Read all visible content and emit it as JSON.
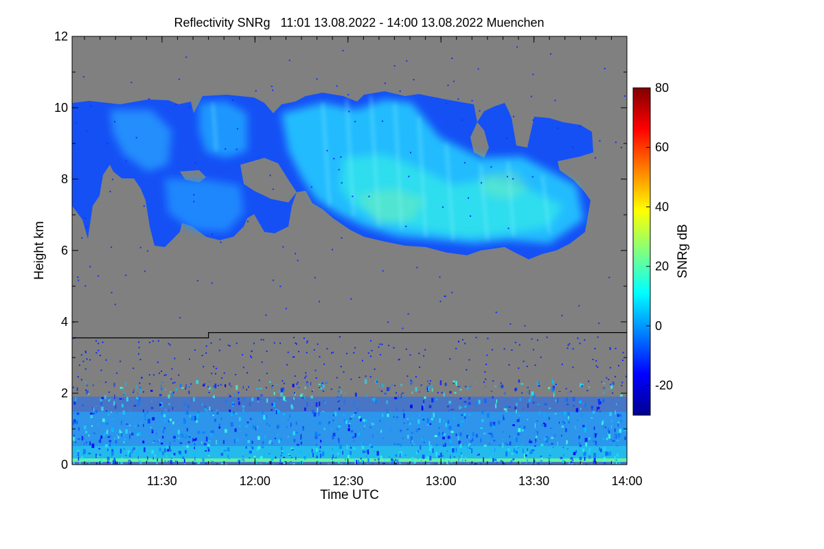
{
  "chart_data": {
    "type": "heatmap",
    "title": "Reflectivity SNRg   11:01 13.08.2022 - 14:00 13.08.2022 Muenchen",
    "xlabel": "Time UTC",
    "ylabel": "Height km",
    "x_range_utc": [
      "11:01",
      "14:00"
    ],
    "x_ticks": [
      "11:30",
      "12:00",
      "12:30",
      "13:00",
      "13:30",
      "14:00"
    ],
    "x_tick_minutes": [
      29,
      59,
      89,
      119,
      149,
      179
    ],
    "ylim": [
      0,
      12
    ],
    "y_ticks": [
      0,
      2,
      4,
      6,
      8,
      10,
      12
    ],
    "colorbar": {
      "label": "SNRg dB",
      "range": [
        -30,
        80
      ],
      "ticks": [
        -20,
        0,
        20,
        40,
        60,
        80
      ],
      "colormap": [
        "#00008f",
        "#0000ff",
        "#0080ff",
        "#00ffff",
        "#80ff80",
        "#ffff00",
        "#ff8000",
        "#ff0000",
        "#800000"
      ]
    },
    "missing_color": "#808080",
    "reference_line": {
      "start_km": 3.55,
      "end_km": 3.7,
      "step_minute": 44
    },
    "features": [
      {
        "name": "upper cloud layer",
        "time_start": "11:01",
        "time_end": "13:45",
        "base_km": 5.8,
        "top_km": 10.4,
        "peak_snr_db": 15
      },
      {
        "name": "boundary layer clutter",
        "time_start": "11:01",
        "time_end": "14:00",
        "base_km": 0,
        "top_km": 2.2,
        "peak_snr_db": 10
      }
    ]
  }
}
